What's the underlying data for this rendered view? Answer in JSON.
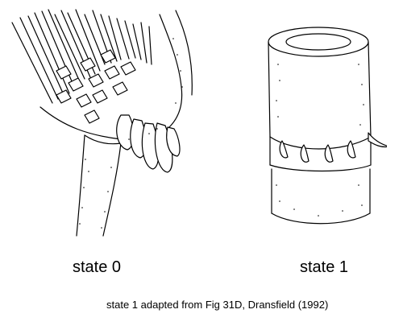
{
  "figure": {
    "state0_label": "state 0",
    "state1_label": "state 1",
    "caption": "state 1 adapted from Fig 31D, Dransfield (1992)"
  }
}
